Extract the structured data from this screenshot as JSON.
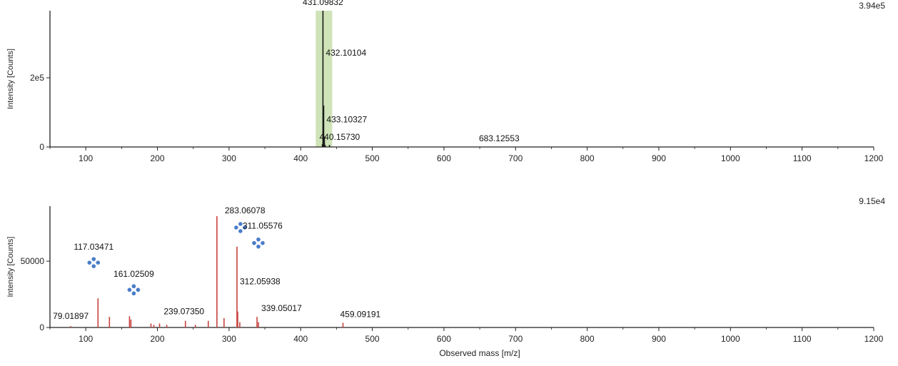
{
  "chart_data": [
    {
      "type": "bar",
      "xlabel": "",
      "ylabel": "Intensity [Counts]",
      "xlim": [
        50,
        1200
      ],
      "ylim": [
        0,
        394000
      ],
      "max_label": "3.94e5",
      "x_ticks": [
        100,
        200,
        300,
        400,
        500,
        600,
        700,
        800,
        900,
        1000,
        1100,
        1200
      ],
      "y_ticks": [
        {
          "value": 0,
          "label": "0"
        },
        {
          "value": 200000,
          "label": "2e5"
        }
      ],
      "highlight": {
        "x0": 421,
        "x1": 444,
        "color": "#cfe3b8"
      },
      "bar_color": "#1a1a1a",
      "peaks": [
        {
          "x": 431.09832,
          "y": 394000,
          "label": "431.09832"
        },
        {
          "x": 432.10104,
          "y": 120000,
          "label": "432.10104"
        },
        {
          "x": 433.10327,
          "y": 30000,
          "label": "433.10327"
        },
        {
          "x": 440.1573,
          "y": 6000,
          "label": "440.15730"
        },
        {
          "x": 683.12553,
          "y": 0,
          "label": "683.12553"
        },
        {
          "x": 430.3,
          "y": 8000
        },
        {
          "x": 434.2,
          "y": 6000
        }
      ]
    },
    {
      "type": "bar",
      "xlabel": "Observed mass [m/z]",
      "ylabel": "Intensity [Counts]",
      "xlim": [
        50,
        1200
      ],
      "ylim": [
        0,
        91500
      ],
      "max_label": "9.15e4",
      "x_ticks": [
        100,
        200,
        300,
        400,
        500,
        600,
        700,
        800,
        900,
        1000,
        1100,
        1200
      ],
      "y_ticks": [
        {
          "value": 0,
          "label": "0"
        },
        {
          "value": 50000,
          "label": "50000"
        }
      ],
      "bar_color": "#c8413e",
      "icon_color": "#4a7cc9",
      "peaks": [
        {
          "x": 79.01897,
          "y": 1000,
          "label": "79.01897"
        },
        {
          "x": 117.03471,
          "y": 22000,
          "label": "117.03471",
          "icon": true
        },
        {
          "x": 133,
          "y": 8000
        },
        {
          "x": 161.02509,
          "y": 8500,
          "label": "161.02509",
          "icon": true
        },
        {
          "x": 163,
          "y": 6000
        },
        {
          "x": 191,
          "y": 3000
        },
        {
          "x": 195,
          "y": 2000
        },
        {
          "x": 203,
          "y": 3000
        },
        {
          "x": 213,
          "y": 2000
        },
        {
          "x": 239.0735,
          "y": 5000,
          "label": "239.07350"
        },
        {
          "x": 253,
          "y": 2000
        },
        {
          "x": 271,
          "y": 5000
        },
        {
          "x": 283.06078,
          "y": 84000,
          "label": "283.06078",
          "icon": true
        },
        {
          "x": 293,
          "y": 7000
        },
        {
          "x": 311.05576,
          "y": 61000,
          "label": "311.05576",
          "icon": true
        },
        {
          "x": 312.05938,
          "y": 12000,
          "label": "312.05938"
        },
        {
          "x": 315,
          "y": 4000
        },
        {
          "x": 339.05017,
          "y": 8000,
          "label": "339.05017"
        },
        {
          "x": 341,
          "y": 4000
        },
        {
          "x": 459.09191,
          "y": 3500,
          "label": "459.09191"
        }
      ]
    }
  ]
}
